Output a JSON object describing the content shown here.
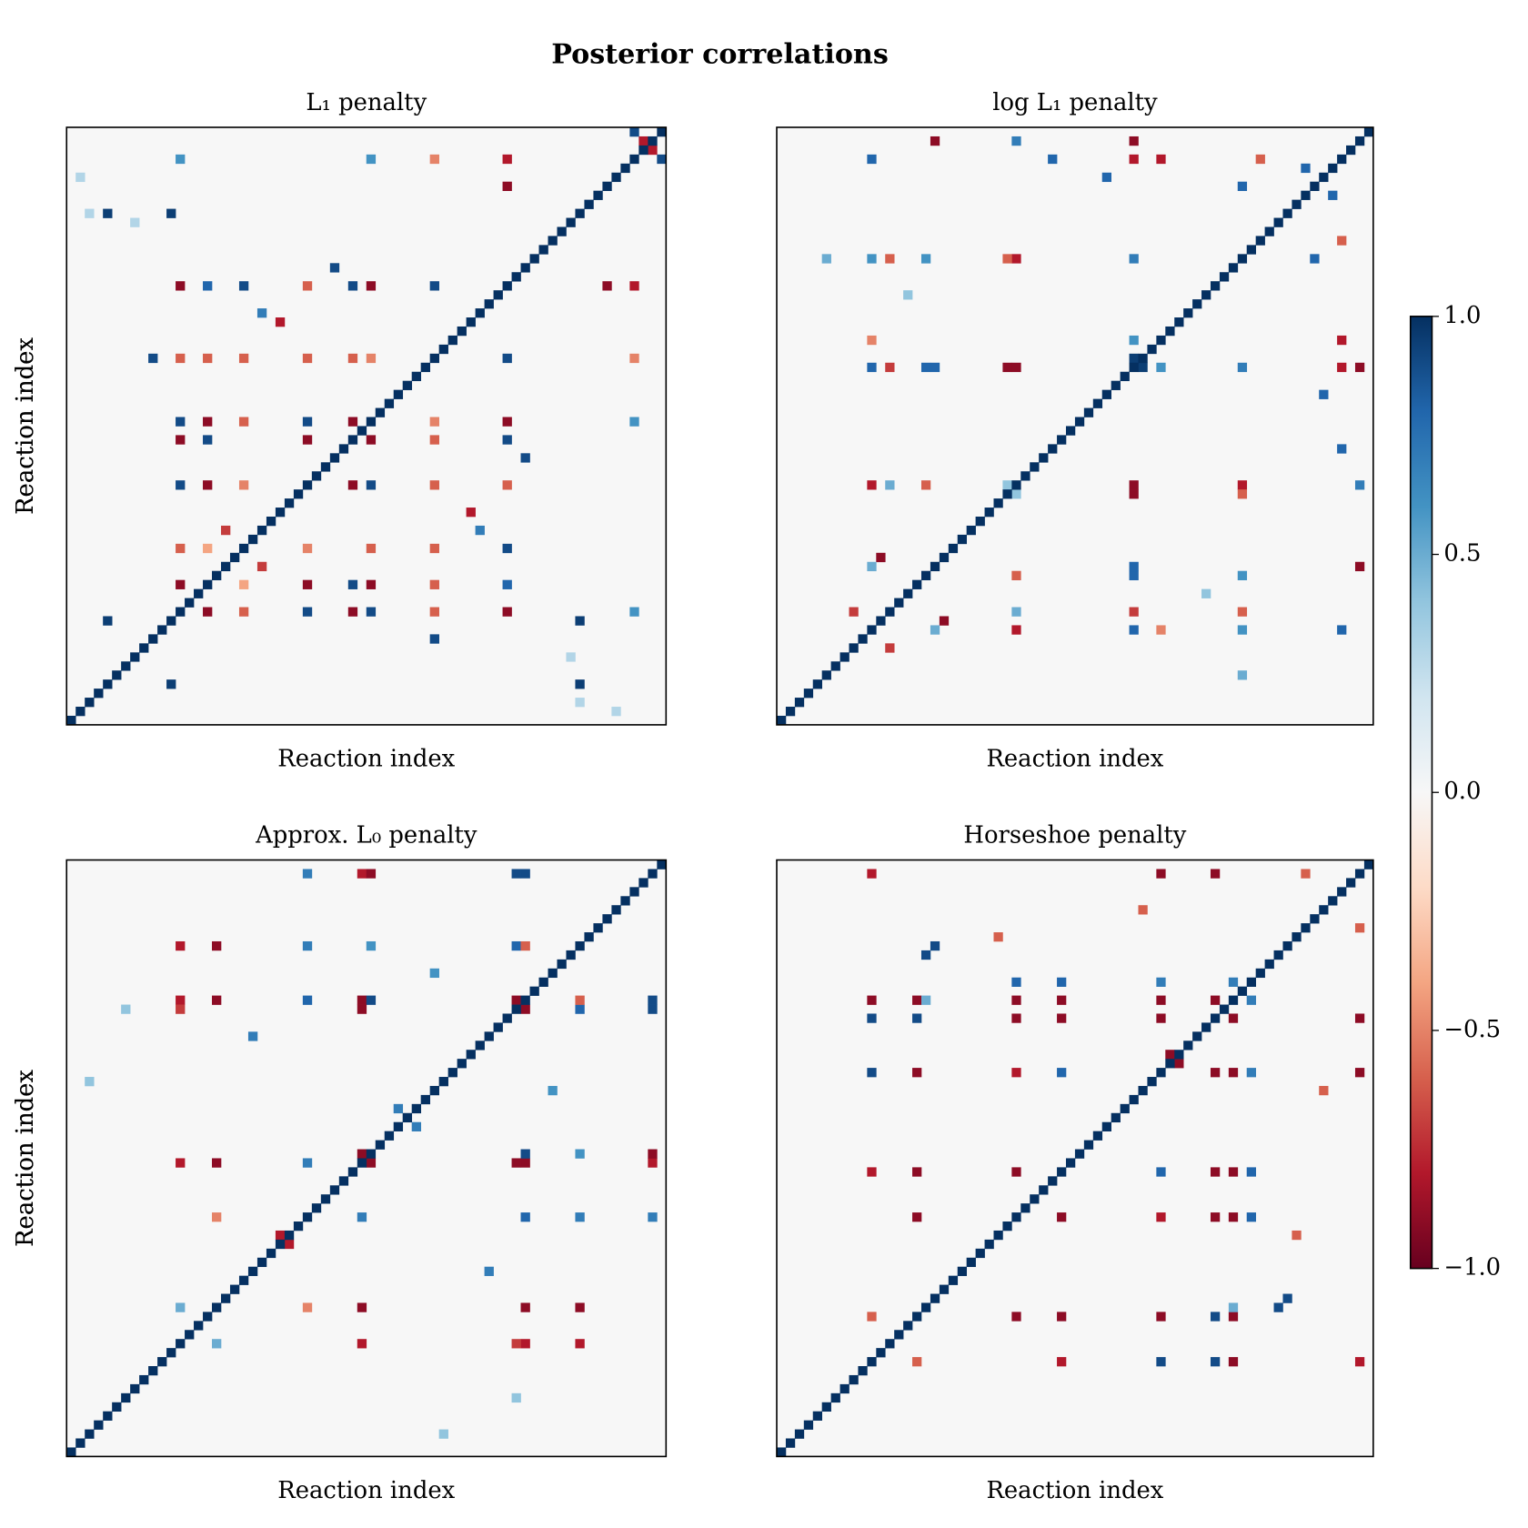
{
  "title": "Posterior correlations",
  "colorbar": {
    "colormap": "RdBu",
    "lim": [
      -1,
      1
    ],
    "ticks": [
      {
        "value": -1,
        "label": "−1.0"
      },
      {
        "value": -0.5,
        "label": "−0.5"
      },
      {
        "value": 0,
        "label": "0.0"
      },
      0.5,
      {
        "value": 1,
        "label": "1.0"
      }
    ]
  },
  "chart_data": [
    {
      "type": "heatmap",
      "title": "L₁ penalty",
      "xlabel": "Reaction index",
      "ylabel": "Reaction index",
      "diagonal": [
        1,
        1,
        1,
        1,
        1,
        1,
        1,
        1,
        1,
        1,
        1,
        1,
        1,
        1,
        1,
        1,
        1,
        1,
        1,
        1,
        1,
        1,
        1,
        1,
        1,
        1,
        1,
        1,
        1,
        1,
        1,
        1,
        1,
        1,
        1,
        1,
        1,
        1,
        1,
        1,
        1,
        1,
        1,
        1,
        1,
        1,
        1,
        1,
        1,
        1,
        1,
        1,
        1,
        1,
        1,
        1,
        1,
        1,
        1,
        1,
        1,
        1,
        1,
        1,
        1,
        1
      ],
      "cells": [
        [
          4,
          56,
          0.95
        ],
        [
          4,
          11,
          0.95
        ],
        [
          11,
          56,
          0.95
        ],
        [
          12,
          48,
          -0.9
        ],
        [
          15,
          48,
          0.8
        ],
        [
          19,
          48,
          0.9
        ],
        [
          26,
          48,
          -0.6
        ],
        [
          31,
          48,
          0.9
        ],
        [
          33,
          48,
          -0.9
        ],
        [
          40,
          48,
          0.9
        ],
        [
          9,
          40,
          0.9
        ],
        [
          12,
          40,
          -0.6
        ],
        [
          15,
          40,
          -0.6
        ],
        [
          19,
          40,
          -0.6
        ],
        [
          26,
          40,
          -0.6
        ],
        [
          31,
          40,
          -0.6
        ],
        [
          33,
          40,
          -0.5
        ],
        [
          12,
          33,
          0.9
        ],
        [
          15,
          33,
          -0.9
        ],
        [
          19,
          33,
          -0.6
        ],
        [
          26,
          33,
          0.9
        ],
        [
          31,
          33,
          -0.9
        ],
        [
          12,
          31,
          -0.9
        ],
        [
          15,
          31,
          0.9
        ],
        [
          26,
          31,
          -0.9
        ],
        [
          12,
          26,
          0.9
        ],
        [
          15,
          26,
          -0.9
        ],
        [
          19,
          26,
          -0.5
        ],
        [
          12,
          19,
          -0.6
        ],
        [
          15,
          19,
          -0.4
        ],
        [
          12,
          15,
          -0.9
        ],
        [
          48,
          59,
          -0.9
        ],
        [
          29,
          50,
          0.9
        ],
        [
          62,
          65,
          0.9
        ],
        [
          63,
          64,
          -0.8
        ],
        [
          48,
          62,
          -0.8
        ],
        [
          33,
          62,
          0.6
        ],
        [
          40,
          62,
          -0.5
        ],
        [
          12,
          62,
          0.6
        ],
        [
          21,
          45,
          0.7
        ],
        [
          23,
          44,
          -0.8
        ],
        [
          17,
          21,
          -0.7
        ],
        [
          1,
          60,
          0.3
        ],
        [
          2,
          56,
          0.3
        ],
        [
          7,
          55,
          0.3
        ]
      ]
    },
    {
      "type": "heatmap",
      "title": "log L₁ penalty",
      "xlabel": "Reaction index",
      "ylabel": "Reaction index",
      "diagonal": [
        1,
        1,
        1,
        1,
        1,
        1,
        1,
        1,
        1,
        1,
        1,
        1,
        1,
        1,
        1,
        1,
        1,
        1,
        1,
        1,
        1,
        1,
        1,
        1,
        1,
        1,
        1,
        1,
        1,
        1,
        1,
        1,
        1,
        1,
        1,
        1,
        1,
        1,
        1,
        1,
        1,
        1,
        1,
        1,
        1,
        1,
        1,
        1,
        1,
        1,
        1,
        1,
        1,
        1,
        1,
        1,
        1,
        1,
        1,
        1,
        1,
        1,
        1,
        1,
        1,
        1
      ],
      "cells": [
        [
          39,
          40,
          0.95
        ],
        [
          10,
          39,
          0.8
        ],
        [
          16,
          39,
          0.8
        ],
        [
          25,
          39,
          -0.9
        ],
        [
          39,
          51,
          0.7
        ],
        [
          39,
          64,
          -0.9
        ],
        [
          10,
          26,
          -0.8
        ],
        [
          26,
          39,
          -0.9
        ],
        [
          17,
          39,
          0.8
        ],
        [
          12,
          39,
          -0.7
        ],
        [
          10,
          62,
          0.8
        ],
        [
          39,
          62,
          -0.8
        ],
        [
          26,
          51,
          -0.8
        ],
        [
          12,
          51,
          -0.6
        ],
        [
          17,
          64,
          -0.9
        ],
        [
          26,
          64,
          0.7
        ],
        [
          11,
          18,
          -0.9
        ],
        [
          51,
          59,
          0.8
        ],
        [
          10,
          51,
          0.6
        ],
        [
          16,
          51,
          0.6
        ],
        [
          25,
          51,
          -0.6
        ],
        [
          10,
          17,
          0.5
        ],
        [
          16,
          26,
          -0.6
        ],
        [
          25,
          26,
          0.4
        ],
        [
          12,
          26,
          0.5
        ],
        [
          42,
          62,
          -0.8
        ],
        [
          42,
          39,
          0.6
        ],
        [
          10,
          42,
          -0.5
        ],
        [
          30,
          62,
          0.8
        ],
        [
          36,
          60,
          0.8
        ],
        [
          5,
          51,
          0.5
        ],
        [
          14,
          47,
          0.4
        ],
        [
          53,
          62,
          -0.6
        ],
        [
          58,
          61,
          0.8
        ],
        [
          8,
          12,
          -0.7
        ]
      ]
    },
    {
      "type": "heatmap",
      "title": "Approx. L₀ penalty",
      "xlabel": "Reaction index",
      "ylabel": "Reaction index",
      "diagonal": [
        1,
        1,
        1,
        1,
        1,
        1,
        1,
        1,
        1,
        1,
        1,
        1,
        1,
        1,
        1,
        1,
        1,
        1,
        1,
        1,
        1,
        1,
        1,
        1,
        1,
        1,
        1,
        1,
        1,
        1,
        1,
        1,
        1,
        1,
        1,
        1,
        1,
        1,
        1,
        1,
        1,
        1,
        1,
        1,
        1,
        1,
        1,
        1,
        1,
        1,
        1,
        1,
        1,
        1,
        1,
        1,
        1,
        1,
        1,
        1,
        1,
        1,
        1,
        1,
        1,
        1
      ],
      "cells": [
        [
          49,
          50,
          -0.9
        ],
        [
          12,
          50,
          -0.8
        ],
        [
          16,
          50,
          -0.9
        ],
        [
          26,
          50,
          0.8
        ],
        [
          32,
          50,
          -0.9
        ],
        [
          33,
          50,
          0.9
        ],
        [
          50,
          64,
          0.9
        ],
        [
          12,
          32,
          -0.8
        ],
        [
          16,
          32,
          -0.9
        ],
        [
          26,
          32,
          0.7
        ],
        [
          32,
          33,
          -0.9
        ],
        [
          32,
          64,
          -0.8
        ],
        [
          16,
          26,
          -0.5
        ],
        [
          12,
          16,
          0.5
        ],
        [
          49,
          64,
          0.9
        ],
        [
          16,
          56,
          -0.9
        ],
        [
          12,
          56,
          -0.8
        ],
        [
          26,
          56,
          0.7
        ],
        [
          33,
          56,
          0.6
        ],
        [
          49,
          56,
          0.8
        ],
        [
          50,
          56,
          -0.6
        ],
        [
          26,
          64,
          0.7
        ],
        [
          33,
          64,
          -0.9
        ],
        [
          49,
          32,
          -0.9
        ],
        [
          12,
          49,
          -0.7
        ],
        [
          23,
          24,
          -0.8
        ],
        [
          38,
          36,
          0.7
        ],
        [
          46,
          20,
          0.7
        ],
        [
          53,
          40,
          0.6
        ],
        [
          6,
          49,
          0.4
        ],
        [
          2,
          41,
          0.4
        ]
      ]
    },
    {
      "type": "heatmap",
      "title": "Horseshoe penalty",
      "xlabel": "Reaction index",
      "ylabel": "Reaction index",
      "diagonal": [
        1,
        1,
        1,
        1,
        1,
        1,
        1,
        1,
        1,
        1,
        1,
        1,
        1,
        1,
        1,
        1,
        1,
        1,
        1,
        1,
        1,
        1,
        1,
        1,
        1,
        1,
        1,
        1,
        1,
        1,
        1,
        1,
        1,
        1,
        1,
        1,
        1,
        1,
        1,
        1,
        1,
        1,
        1,
        1,
        1,
        1,
        1,
        1,
        1,
        1,
        1,
        1,
        1,
        1,
        1,
        1,
        1,
        1,
        1,
        1,
        1,
        1,
        1,
        1,
        1,
        1
      ],
      "cells": [
        [
          10,
          50,
          -0.9
        ],
        [
          15,
          50,
          -0.9
        ],
        [
          26,
          50,
          -0.9
        ],
        [
          31,
          50,
          -0.9
        ],
        [
          42,
          50,
          -0.9
        ],
        [
          48,
          50,
          -0.9
        ],
        [
          50,
          52,
          0.7
        ],
        [
          10,
          42,
          0.9
        ],
        [
          15,
          42,
          -0.9
        ],
        [
          26,
          42,
          -0.8
        ],
        [
          31,
          42,
          0.8
        ],
        [
          42,
          48,
          -0.9
        ],
        [
          42,
          52,
          0.7
        ],
        [
          10,
          31,
          -0.8
        ],
        [
          15,
          31,
          -0.9
        ],
        [
          26,
          31,
          -0.9
        ],
        [
          31,
          48,
          -0.9
        ],
        [
          10,
          15,
          -0.6
        ],
        [
          15,
          26,
          -0.9
        ],
        [
          26,
          48,
          -0.9
        ],
        [
          10,
          64,
          -0.8
        ],
        [
          48,
          64,
          -0.9
        ],
        [
          42,
          64,
          -0.9
        ],
        [
          16,
          50,
          0.5
        ],
        [
          10,
          48,
          0.9
        ],
        [
          15,
          48,
          0.9
        ],
        [
          26,
          52,
          0.8
        ],
        [
          31,
          52,
          0.8
        ],
        [
          17,
          56,
          0.9
        ],
        [
          43,
          44,
          -0.9
        ],
        [
          55,
          16,
          0.9
        ],
        [
          24,
          57,
          -0.6
        ],
        [
          40,
          60,
          -0.6
        ],
        [
          58,
          64,
          -0.6
        ]
      ]
    }
  ]
}
